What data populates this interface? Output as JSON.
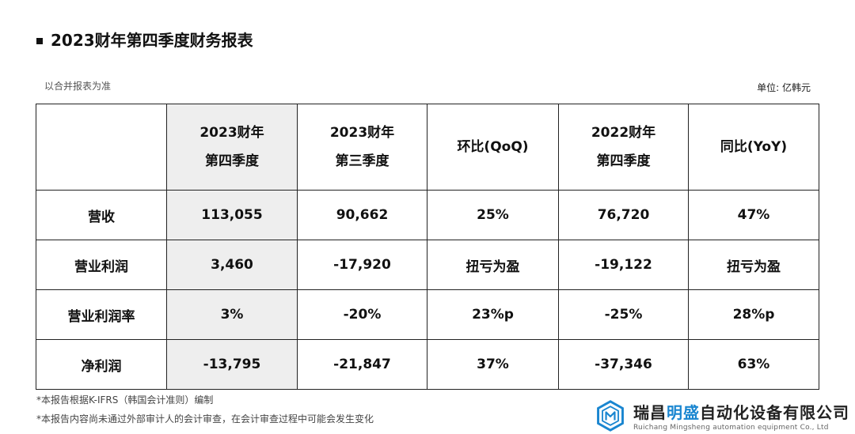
{
  "report": {
    "title": "2023财年第四季度财务报表",
    "basis": "以合并报表为准",
    "unit": "单位: 亿韩元"
  },
  "table": {
    "headers": [
      {
        "line1": "",
        "line2": ""
      },
      {
        "line1": "2023财年",
        "line2": "第四季度"
      },
      {
        "line1": "2023财年",
        "line2": "第三季度"
      },
      {
        "line1": "环比(QoQ)",
        "line2": ""
      },
      {
        "line1": "2022财年",
        "line2": "第四季度"
      },
      {
        "line1": "同比(YoY)",
        "line2": ""
      }
    ],
    "rows": [
      {
        "label": "营收",
        "cells": [
          "113,055",
          "90,662",
          "25%",
          "76,720",
          "47%"
        ]
      },
      {
        "label": "营业利润",
        "cells": [
          "3,460",
          "-17,920",
          "扭亏为盈",
          "-19,122",
          "扭亏为盈"
        ]
      },
      {
        "label": "营业利润率",
        "cells": [
          "3%",
          "-20%",
          "23%p",
          "-25%",
          "28%p"
        ]
      },
      {
        "label": "净利润",
        "cells": [
          "-13,795",
          "-21,847",
          "37%",
          "-37,346",
          "63%"
        ]
      }
    ]
  },
  "footnotes": {
    "note1": "*本报告根据K-IFRS（韩国会计准则）编制",
    "note2": "*本报告内容尚未通过外部审计人的会计审查，在会计审查过程中可能会发生变化"
  },
  "logo": {
    "name_part1": "瑞昌",
    "name_part2": "明盛",
    "name_part3": "自动化设备有限公司",
    "english": "Ruichang Mingsheng automation equipment Co., Ltd",
    "icon": "hexagon-logo-icon",
    "accent_color": "#1a86d0"
  },
  "colors": {
    "highlight_column": "#eeeeee",
    "border": "#222222"
  }
}
